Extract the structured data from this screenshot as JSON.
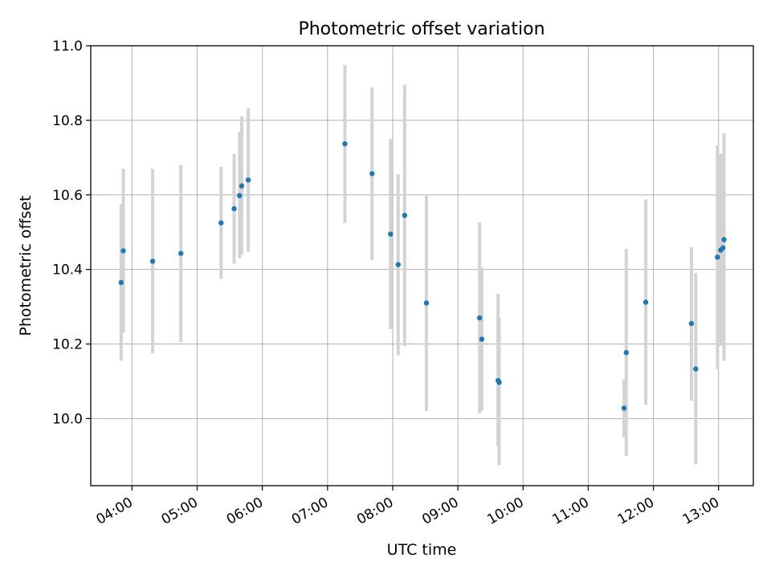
{
  "chart_data": {
    "type": "scatter",
    "title": "Photometric offset variation",
    "xlabel": "UTC time",
    "ylabel": "Photometric offset",
    "x_ticks": [
      "04:00",
      "05:00",
      "06:00",
      "07:00",
      "08:00",
      "09:00",
      "10:00",
      "11:00",
      "12:00",
      "13:00"
    ],
    "y_ticks": [
      "10.0",
      "10.2",
      "10.4",
      "10.6",
      "10.8",
      "11.0"
    ],
    "xlim": [
      "03:22",
      "13:32"
    ],
    "ylim": [
      9.82,
      11.0
    ],
    "grid": true,
    "colors": {
      "point": "#1f77b4",
      "errorbar": "#d3d3d3",
      "grid": "#b0b0b0"
    },
    "points": [
      {
        "x": "03:50",
        "y": 10.365,
        "ylow": 10.155,
        "yhigh": 10.575
      },
      {
        "x": "03:52",
        "y": 10.45,
        "ylow": 10.23,
        "yhigh": 10.67
      },
      {
        "x": "04:19",
        "y": 10.422,
        "ylow": 10.175,
        "yhigh": 10.67
      },
      {
        "x": "04:45",
        "y": 10.443,
        "ylow": 10.205,
        "yhigh": 10.68
      },
      {
        "x": "05:22",
        "y": 10.525,
        "ylow": 10.375,
        "yhigh": 10.675
      },
      {
        "x": "05:34",
        "y": 10.563,
        "ylow": 10.415,
        "yhigh": 10.71
      },
      {
        "x": "05:39",
        "y": 10.598,
        "ylow": 10.43,
        "yhigh": 10.77
      },
      {
        "x": "05:41",
        "y": 10.624,
        "ylow": 10.44,
        "yhigh": 10.81
      },
      {
        "x": "05:47",
        "y": 10.64,
        "ylow": 10.448,
        "yhigh": 10.832
      },
      {
        "x": "07:16",
        "y": 10.737,
        "ylow": 10.525,
        "yhigh": 10.948
      },
      {
        "x": "07:41",
        "y": 10.657,
        "ylow": 10.425,
        "yhigh": 10.888
      },
      {
        "x": "07:58",
        "y": 10.495,
        "ylow": 10.24,
        "yhigh": 10.75
      },
      {
        "x": "08:05",
        "y": 10.413,
        "ylow": 10.17,
        "yhigh": 10.655
      },
      {
        "x": "08:11",
        "y": 10.545,
        "ylow": 10.195,
        "yhigh": 10.895
      },
      {
        "x": "08:31",
        "y": 10.31,
        "ylow": 10.02,
        "yhigh": 10.602
      },
      {
        "x": "09:20",
        "y": 10.27,
        "ylow": 10.015,
        "yhigh": 10.527
      },
      {
        "x": "09:22",
        "y": 10.213,
        "ylow": 10.02,
        "yhigh": 10.405
      },
      {
        "x": "09:37",
        "y": 10.102,
        "ylow": 9.925,
        "yhigh": 10.335
      },
      {
        "x": "09:38",
        "y": 10.097,
        "ylow": 9.875,
        "yhigh": 10.27
      },
      {
        "x": "11:33",
        "y": 10.028,
        "ylow": 9.95,
        "yhigh": 10.105
      },
      {
        "x": "11:35",
        "y": 10.177,
        "ylow": 9.9,
        "yhigh": 10.455
      },
      {
        "x": "11:53",
        "y": 10.312,
        "ylow": 10.037,
        "yhigh": 10.588
      },
      {
        "x": "12:35",
        "y": 10.255,
        "ylow": 10.048,
        "yhigh": 10.46
      },
      {
        "x": "12:39",
        "y": 10.133,
        "ylow": 9.877,
        "yhigh": 10.39
      },
      {
        "x": "12:59",
        "y": 10.433,
        "ylow": 10.133,
        "yhigh": 10.733
      },
      {
        "x": "13:02",
        "y": 10.452,
        "ylow": 10.195,
        "yhigh": 10.71
      },
      {
        "x": "13:04",
        "y": 10.458,
        "ylow": 10.2,
        "yhigh": 10.71
      },
      {
        "x": "13:05",
        "y": 10.48,
        "ylow": 10.155,
        "yhigh": 10.765
      }
    ]
  }
}
